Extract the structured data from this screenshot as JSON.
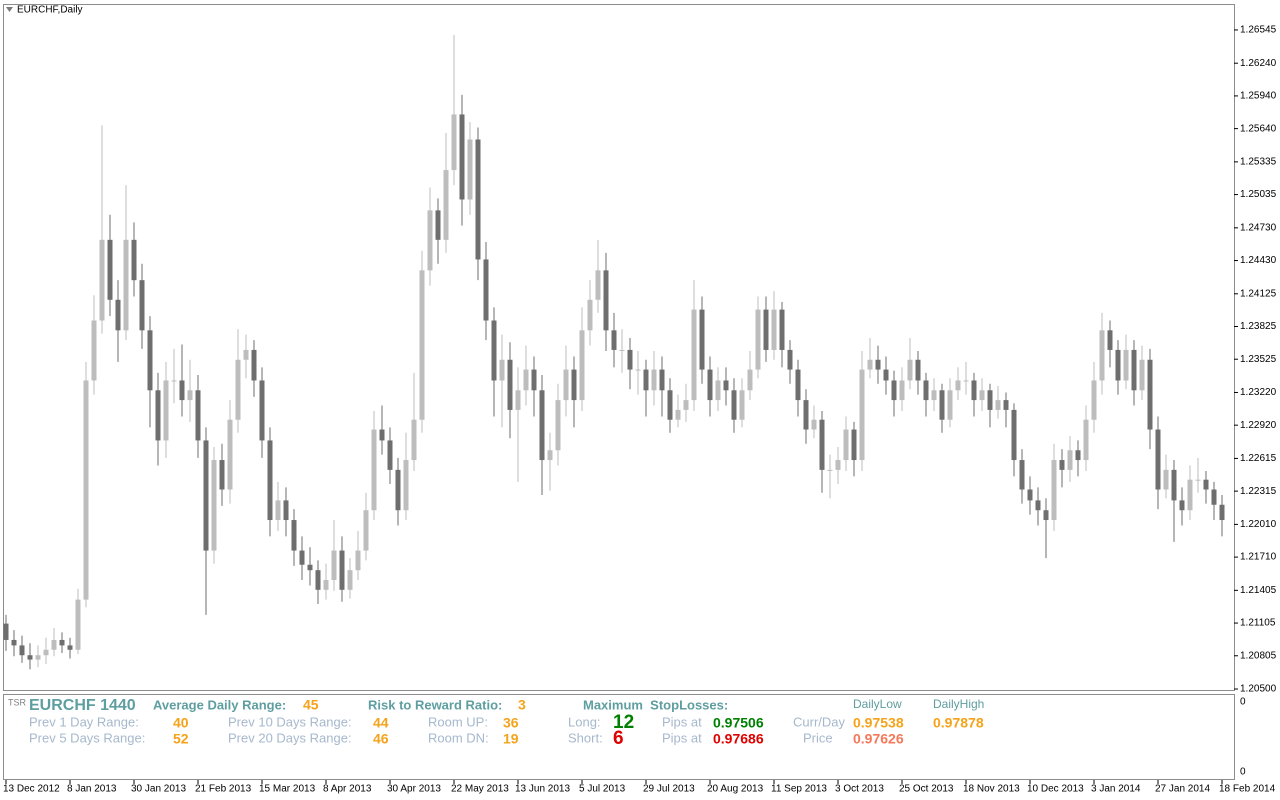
{
  "chart_data": {
    "type": "candlestick",
    "title": "EURCHF,Daily",
    "up_color": "#bdbdbd",
    "down_color": "#6e6e6e",
    "categories": [
      "13 Dec 2012",
      null,
      null,
      null,
      null,
      null,
      null,
      null,
      "8 Jan 2013",
      null,
      null,
      null,
      null,
      null,
      null,
      null,
      "30 Jan 2013",
      null,
      null,
      null,
      null,
      null,
      null,
      null,
      "21 Feb 2013",
      null,
      null,
      null,
      null,
      null,
      null,
      null,
      "15 Mar 2013",
      null,
      null,
      null,
      null,
      null,
      null,
      null,
      "8 Apr 2013",
      null,
      null,
      null,
      null,
      null,
      null,
      null,
      "30 Apr 2013",
      null,
      null,
      null,
      null,
      null,
      null,
      null,
      "22 May 2013",
      null,
      null,
      null,
      null,
      null,
      null,
      null,
      "13 Jun 2013",
      null,
      null,
      null,
      null,
      null,
      null,
      null,
      "5 Jul 2013",
      null,
      null,
      null,
      null,
      null,
      null,
      null,
      "29 Jul 2013",
      null,
      null,
      null,
      null,
      null,
      null,
      null,
      "20 Aug 2013",
      null,
      null,
      null,
      null,
      null,
      null,
      null,
      "11 Sep 2013",
      null,
      null,
      null,
      null,
      null,
      null,
      null,
      "3 Oct 2013",
      null,
      null,
      null,
      null,
      null,
      null,
      null,
      "25 Oct 2013",
      null,
      null,
      null,
      null,
      null,
      null,
      null,
      "18 Nov 2013",
      null,
      null,
      null,
      null,
      null,
      null,
      null,
      "10 Dec 2013",
      null,
      null,
      null,
      null,
      null,
      null,
      null,
      "3 Jan 2014",
      null,
      null,
      null,
      null,
      null,
      null,
      null,
      "27 Jan 2014",
      null,
      null,
      null,
      null,
      null,
      null,
      null,
      "18 Feb 2014"
    ],
    "ohlc": [
      [
        1.211,
        1.2118,
        1.2085,
        1.2095
      ],
      [
        1.2095,
        1.2104,
        1.208,
        1.209
      ],
      [
        1.209,
        1.2099,
        1.2074,
        1.2081
      ],
      [
        1.2081,
        1.2092,
        1.2068,
        1.2077
      ],
      [
        1.2077,
        1.209,
        1.207,
        1.2081
      ],
      [
        1.2081,
        1.2097,
        1.2073,
        1.2086
      ],
      [
        1.2086,
        1.2106,
        1.208,
        1.2095
      ],
      [
        1.2095,
        1.2102,
        1.2083,
        1.209
      ],
      [
        1.209,
        1.2097,
        1.2078,
        1.2086
      ],
      [
        1.2086,
        1.2142,
        1.2082,
        1.2132
      ],
      [
        1.2132,
        1.235,
        1.2125,
        1.2333
      ],
      [
        1.2333,
        1.2411,
        1.232,
        1.2388
      ],
      [
        1.2388,
        1.2567,
        1.2376,
        1.2462
      ],
      [
        1.2462,
        1.2485,
        1.2392,
        1.2407
      ],
      [
        1.2407,
        1.2425,
        1.235,
        1.2379
      ],
      [
        1.2379,
        1.2512,
        1.237,
        1.2462
      ],
      [
        1.2462,
        1.2478,
        1.241,
        1.2425
      ],
      [
        1.2425,
        1.244,
        1.2362,
        1.2379
      ],
      [
        1.2379,
        1.2392,
        1.229,
        1.2324
      ],
      [
        1.2324,
        1.234,
        1.2255,
        1.2278
      ],
      [
        1.2278,
        1.235,
        1.2262,
        1.2333
      ],
      [
        1.2333,
        1.2362,
        1.2312,
        1.2333
      ],
      [
        1.2333,
        1.2366,
        1.23,
        1.2315
      ],
      [
        1.2315,
        1.2352,
        1.2295,
        1.2324
      ],
      [
        1.2324,
        1.2338,
        1.2262,
        1.2278
      ],
      [
        1.2278,
        1.229,
        1.2118,
        1.2177
      ],
      [
        1.2177,
        1.2272,
        1.2165,
        1.226
      ],
      [
        1.226,
        1.2275,
        1.2218,
        1.2233
      ],
      [
        1.2233,
        1.2315,
        1.222,
        1.2297
      ],
      [
        1.2297,
        1.238,
        1.2285,
        1.2352
      ],
      [
        1.2352,
        1.2375,
        1.2335,
        1.2361
      ],
      [
        1.2361,
        1.237,
        1.2318,
        1.2333
      ],
      [
        1.2333,
        1.2345,
        1.2262,
        1.2278
      ],
      [
        1.2278,
        1.229,
        1.219,
        1.2205
      ],
      [
        1.2205,
        1.224,
        1.2195,
        1.2223
      ],
      [
        1.2223,
        1.2235,
        1.219,
        1.2205
      ],
      [
        1.2205,
        1.2215,
        1.2163,
        1.2177
      ],
      [
        1.2177,
        1.219,
        1.215,
        1.2164
      ],
      [
        1.2164,
        1.218,
        1.2145,
        1.2159
      ],
      [
        1.2159,
        1.2168,
        1.2128,
        1.2141
      ],
      [
        1.2141,
        1.2165,
        1.2132,
        1.215
      ],
      [
        1.215,
        1.2205,
        1.214,
        1.2177
      ],
      [
        1.2177,
        1.219,
        1.213,
        1.2141
      ],
      [
        1.2141,
        1.217,
        1.2133,
        1.2159
      ],
      [
        1.2159,
        1.2195,
        1.215,
        1.2177
      ],
      [
        1.2177,
        1.223,
        1.2168,
        1.2214
      ],
      [
        1.2214,
        1.2305,
        1.2205,
        1.2288
      ],
      [
        1.2288,
        1.231,
        1.2265,
        1.2278
      ],
      [
        1.2278,
        1.229,
        1.2238,
        1.2251
      ],
      [
        1.2251,
        1.2262,
        1.22,
        1.2214
      ],
      [
        1.2214,
        1.2285,
        1.2205,
        1.226
      ],
      [
        1.226,
        1.234,
        1.225,
        1.2297
      ],
      [
        1.2297,
        1.2452,
        1.2285,
        1.2434
      ],
      [
        1.2434,
        1.251,
        1.242,
        1.2489
      ],
      [
        1.2489,
        1.25,
        1.244,
        1.2462
      ],
      [
        1.2462,
        1.256,
        1.245,
        1.2526
      ],
      [
        1.2526,
        1.265,
        1.2512,
        1.2577
      ],
      [
        1.2577,
        1.2595,
        1.2475,
        1.2499
      ],
      [
        1.2499,
        1.257,
        1.2485,
        1.2554
      ],
      [
        1.2554,
        1.2565,
        1.2425,
        1.2444
      ],
      [
        1.2444,
        1.246,
        1.237,
        1.2388
      ],
      [
        1.2388,
        1.24,
        1.23,
        1.2333
      ],
      [
        1.2333,
        1.2375,
        1.229,
        1.2352
      ],
      [
        1.2352,
        1.2368,
        1.228,
        1.2306
      ],
      [
        1.2306,
        1.2345,
        1.224,
        1.2324
      ],
      [
        1.2324,
        1.2365,
        1.231,
        1.2343
      ],
      [
        1.2343,
        1.2355,
        1.23,
        1.2324
      ],
      [
        1.2324,
        1.2338,
        1.2228,
        1.226
      ],
      [
        1.226,
        1.2285,
        1.2232,
        1.2269
      ],
      [
        1.2269,
        1.233,
        1.2255,
        1.2315
      ],
      [
        1.2315,
        1.2365,
        1.23,
        1.2343
      ],
      [
        1.2343,
        1.2355,
        1.229,
        1.2315
      ],
      [
        1.2315,
        1.24,
        1.2305,
        1.2379
      ],
      [
        1.2379,
        1.2425,
        1.2365,
        1.2407
      ],
      [
        1.2407,
        1.2462,
        1.2395,
        1.2434
      ],
      [
        1.2434,
        1.245,
        1.236,
        1.2379
      ],
      [
        1.2379,
        1.2395,
        1.2345,
        1.2361
      ],
      [
        1.2361,
        1.238,
        1.234,
        1.2361
      ],
      [
        1.2361,
        1.2372,
        1.2325,
        1.2343
      ],
      [
        1.2343,
        1.236,
        1.232,
        1.2343
      ],
      [
        1.2343,
        1.2352,
        1.23,
        1.2324
      ],
      [
        1.2324,
        1.236,
        1.231,
        1.2343
      ],
      [
        1.2343,
        1.2355,
        1.23,
        1.2324
      ],
      [
        1.2324,
        1.2335,
        1.2285,
        1.2297
      ],
      [
        1.2297,
        1.232,
        1.229,
        1.2306
      ],
      [
        1.2306,
        1.233,
        1.2295,
        1.2315
      ],
      [
        1.2315,
        1.2425,
        1.2305,
        1.2398
      ],
      [
        1.2398,
        1.241,
        1.233,
        1.2343
      ],
      [
        1.2343,
        1.2355,
        1.23,
        1.2315
      ],
      [
        1.2315,
        1.2345,
        1.2305,
        1.2333
      ],
      [
        1.2333,
        1.2345,
        1.231,
        1.2324
      ],
      [
        1.2324,
        1.2335,
        1.2285,
        1.2297
      ],
      [
        1.2297,
        1.2335,
        1.229,
        1.2324
      ],
      [
        1.2324,
        1.236,
        1.2315,
        1.2343
      ],
      [
        1.2343,
        1.241,
        1.2335,
        1.2398
      ],
      [
        1.2398,
        1.241,
        1.235,
        1.2361
      ],
      [
        1.2361,
        1.2415,
        1.2352,
        1.2398
      ],
      [
        1.2398,
        1.2405,
        1.2345,
        1.2361
      ],
      [
        1.2361,
        1.237,
        1.233,
        1.2343
      ],
      [
        1.2343,
        1.2352,
        1.23,
        1.2315
      ],
      [
        1.2315,
        1.2325,
        1.2275,
        1.2288
      ],
      [
        1.2288,
        1.231,
        1.228,
        1.2297
      ],
      [
        1.2297,
        1.2305,
        1.223,
        1.2251
      ],
      [
        1.2251,
        1.2265,
        1.2225,
        1.2251
      ],
      [
        1.2251,
        1.2272,
        1.2238,
        1.226
      ],
      [
        1.226,
        1.23,
        1.225,
        1.2288
      ],
      [
        1.2288,
        1.2295,
        1.2245,
        1.226
      ],
      [
        1.226,
        1.236,
        1.225,
        1.2343
      ],
      [
        1.2343,
        1.2372,
        1.2335,
        1.2352
      ],
      [
        1.2352,
        1.2365,
        1.233,
        1.2343
      ],
      [
        1.2343,
        1.2355,
        1.232,
        1.2333
      ],
      [
        1.2333,
        1.2342,
        1.23,
        1.2315
      ],
      [
        1.2315,
        1.2345,
        1.2305,
        1.2333
      ],
      [
        1.2333,
        1.2372,
        1.2325,
        1.2352
      ],
      [
        1.2352,
        1.236,
        1.232,
        1.2333
      ],
      [
        1.2333,
        1.234,
        1.23,
        1.2315
      ],
      [
        1.2315,
        1.2335,
        1.2305,
        1.2324
      ],
      [
        1.2324,
        1.233,
        1.2285,
        1.2297
      ],
      [
        1.2297,
        1.2335,
        1.229,
        1.2324
      ],
      [
        1.2324,
        1.2345,
        1.2315,
        1.2333
      ],
      [
        1.2333,
        1.235,
        1.232,
        1.2333
      ],
      [
        1.2333,
        1.234,
        1.23,
        1.2315
      ],
      [
        1.2315,
        1.2335,
        1.2305,
        1.2324
      ],
      [
        1.2324,
        1.233,
        1.229,
        1.2306
      ],
      [
        1.2306,
        1.2328,
        1.2298,
        1.2315
      ],
      [
        1.2315,
        1.2322,
        1.229,
        1.2306
      ],
      [
        1.2306,
        1.2312,
        1.2245,
        1.226
      ],
      [
        1.226,
        1.227,
        1.222,
        1.2233
      ],
      [
        1.2233,
        1.2245,
        1.221,
        1.2223
      ],
      [
        1.2223,
        1.2235,
        1.22,
        1.2214
      ],
      [
        1.2214,
        1.2225,
        1.217,
        1.2205
      ],
      [
        1.2205,
        1.2275,
        1.2195,
        1.226
      ],
      [
        1.226,
        1.227,
        1.2235,
        1.2251
      ],
      [
        1.2251,
        1.2282,
        1.224,
        1.2269
      ],
      [
        1.2269,
        1.2278,
        1.2245,
        1.226
      ],
      [
        1.226,
        1.231,
        1.225,
        1.2297
      ],
      [
        1.2297,
        1.235,
        1.2285,
        1.2333
      ],
      [
        1.2333,
        1.2395,
        1.232,
        1.2379
      ],
      [
        1.2379,
        1.2388,
        1.2345,
        1.2361
      ],
      [
        1.2361,
        1.237,
        1.232,
        1.2333
      ],
      [
        1.2333,
        1.2375,
        1.2325,
        1.2361
      ],
      [
        1.2361,
        1.237,
        1.231,
        1.2324
      ],
      [
        1.2324,
        1.2365,
        1.2315,
        1.2352
      ],
      [
        1.2352,
        1.2362,
        1.227,
        1.2288
      ],
      [
        1.2288,
        1.23,
        1.2215,
        1.2233
      ],
      [
        1.2233,
        1.2265,
        1.2225,
        1.2251
      ],
      [
        1.2251,
        1.226,
        1.2185,
        1.2223
      ],
      [
        1.2223,
        1.2235,
        1.22,
        1.2214
      ],
      [
        1.2214,
        1.2255,
        1.2205,
        1.2242
      ],
      [
        1.2242,
        1.2262,
        1.223,
        1.2242
      ],
      [
        1.2242,
        1.225,
        1.222,
        1.2233
      ],
      [
        1.2233,
        1.224,
        1.2205,
        1.2219
      ],
      [
        1.2219,
        1.2228,
        1.219,
        1.2205
      ]
    ],
    "ylim": [
      1.20491,
      1.26783
    ],
    "yticks": [
      1.26545,
      {
        "value": 1.2624,
        "label": "1.26240"
      },
      {
        "value": 1.2594,
        "label": "1.25940"
      },
      {
        "value": 1.2564,
        "label": "1.25640"
      },
      1.25335,
      1.25035,
      {
        "value": 1.2473,
        "label": "1.24730"
      },
      {
        "value": 1.2443,
        "label": "1.24430"
      },
      1.24125,
      1.23825,
      1.23525,
      {
        "value": 1.2322,
        "label": "1.23220"
      },
      {
        "value": 1.2292,
        "label": "1.22920"
      },
      1.22615,
      1.22315,
      {
        "value": 1.2201,
        "label": "1.22010"
      },
      {
        "value": 1.2171,
        "label": "1.21710"
      },
      1.21405,
      1.21105,
      1.20805,
      {
        "value": 1.205,
        "label": "1.20500"
      }
    ]
  },
  "panel": {
    "axis_labels": [
      0,
      0
    ],
    "tag": "TSR",
    "symbol": "EURCHF 1440",
    "adr_label": "Average Daily Range:",
    "adr": 45,
    "rr_label": "Risk to Reward Ratio:",
    "rr": 3,
    "sl_label": "Maximum  StopLosses:",
    "daily_low_label": "DailyLow",
    "daily_high_label": "DailyHigh",
    "prev1_label": "Prev 1 Day Range:",
    "prev1": 40,
    "prev5_label": "Prev 5 Days Range:",
    "prev5": 52,
    "prev10_label": "Prev 10 Days Range:",
    "prev10": 44,
    "prev20_label": "Prev 20 Days Range:",
    "prev20": 46,
    "room_up_label": "Room UP:",
    "room_up": 36,
    "room_dn_label": "Room DN:",
    "room_dn": 19,
    "long_label": "Long:",
    "long": 12,
    "short_label": "Short:",
    "short": 6,
    "long_pips_label": "Pips at",
    "long_price": 0.97506,
    "short_pips_label": "Pips at",
    "short_price": 0.97686,
    "curr_day_label": "Curr/Day",
    "price_label": "Price",
    "daily_low": 0.97538,
    "daily_high": 0.97878,
    "price": 0.97626
  }
}
